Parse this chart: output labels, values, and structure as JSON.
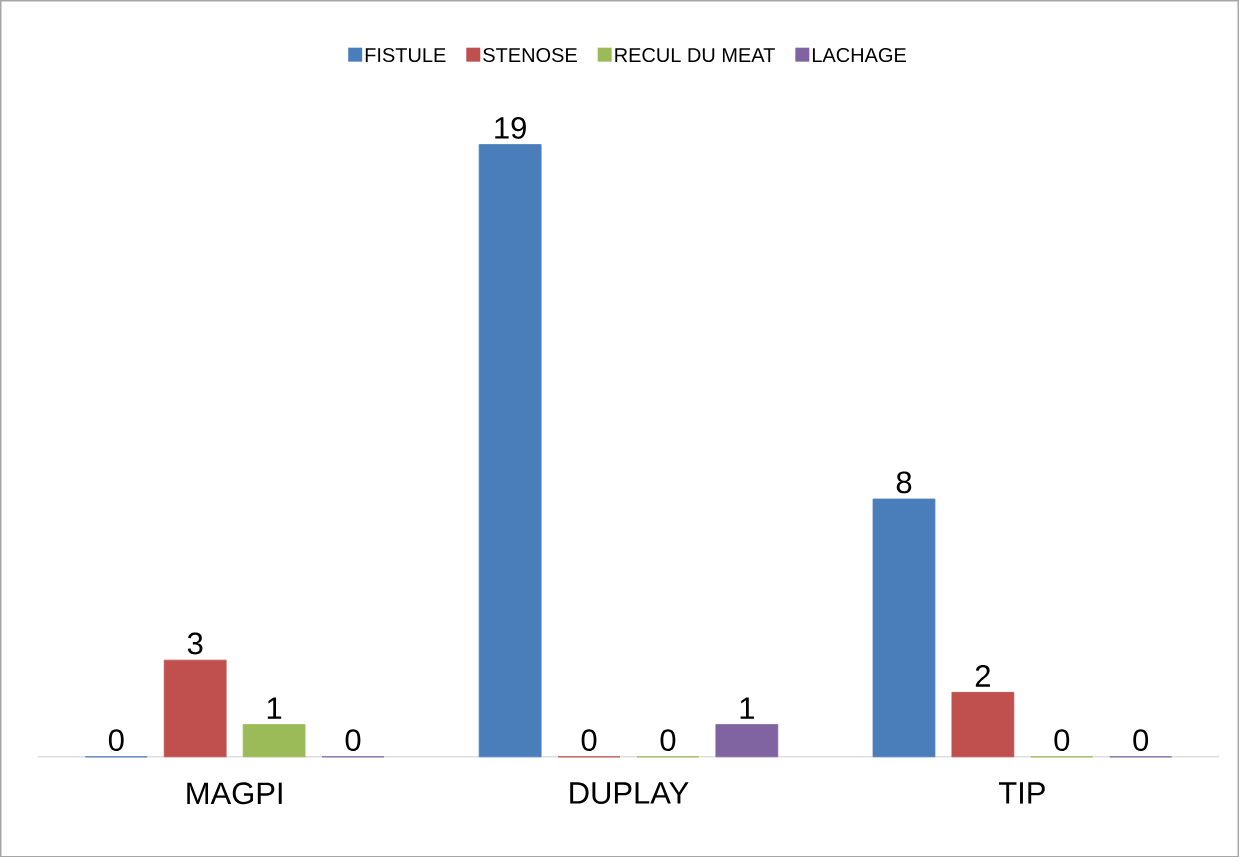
{
  "chart_data": {
    "type": "bar",
    "categories": [
      "MAGPI",
      "DUPLAY",
      "TIP"
    ],
    "series": [
      {
        "name": "FISTULE",
        "color": "#4a7ebb",
        "values": [
          0,
          19,
          8
        ]
      },
      {
        "name": "STENOSE",
        "color": "#c0504d",
        "values": [
          3,
          0,
          2
        ]
      },
      {
        "name": "RECUL DU MEAT",
        "color": "#9bbb59",
        "values": [
          1,
          0,
          0
        ]
      },
      {
        "name": "LACHAGE",
        "color": "#8064a2",
        "values": [
          0,
          1,
          0
        ]
      }
    ],
    "data_labels": true,
    "legend": "top"
  }
}
